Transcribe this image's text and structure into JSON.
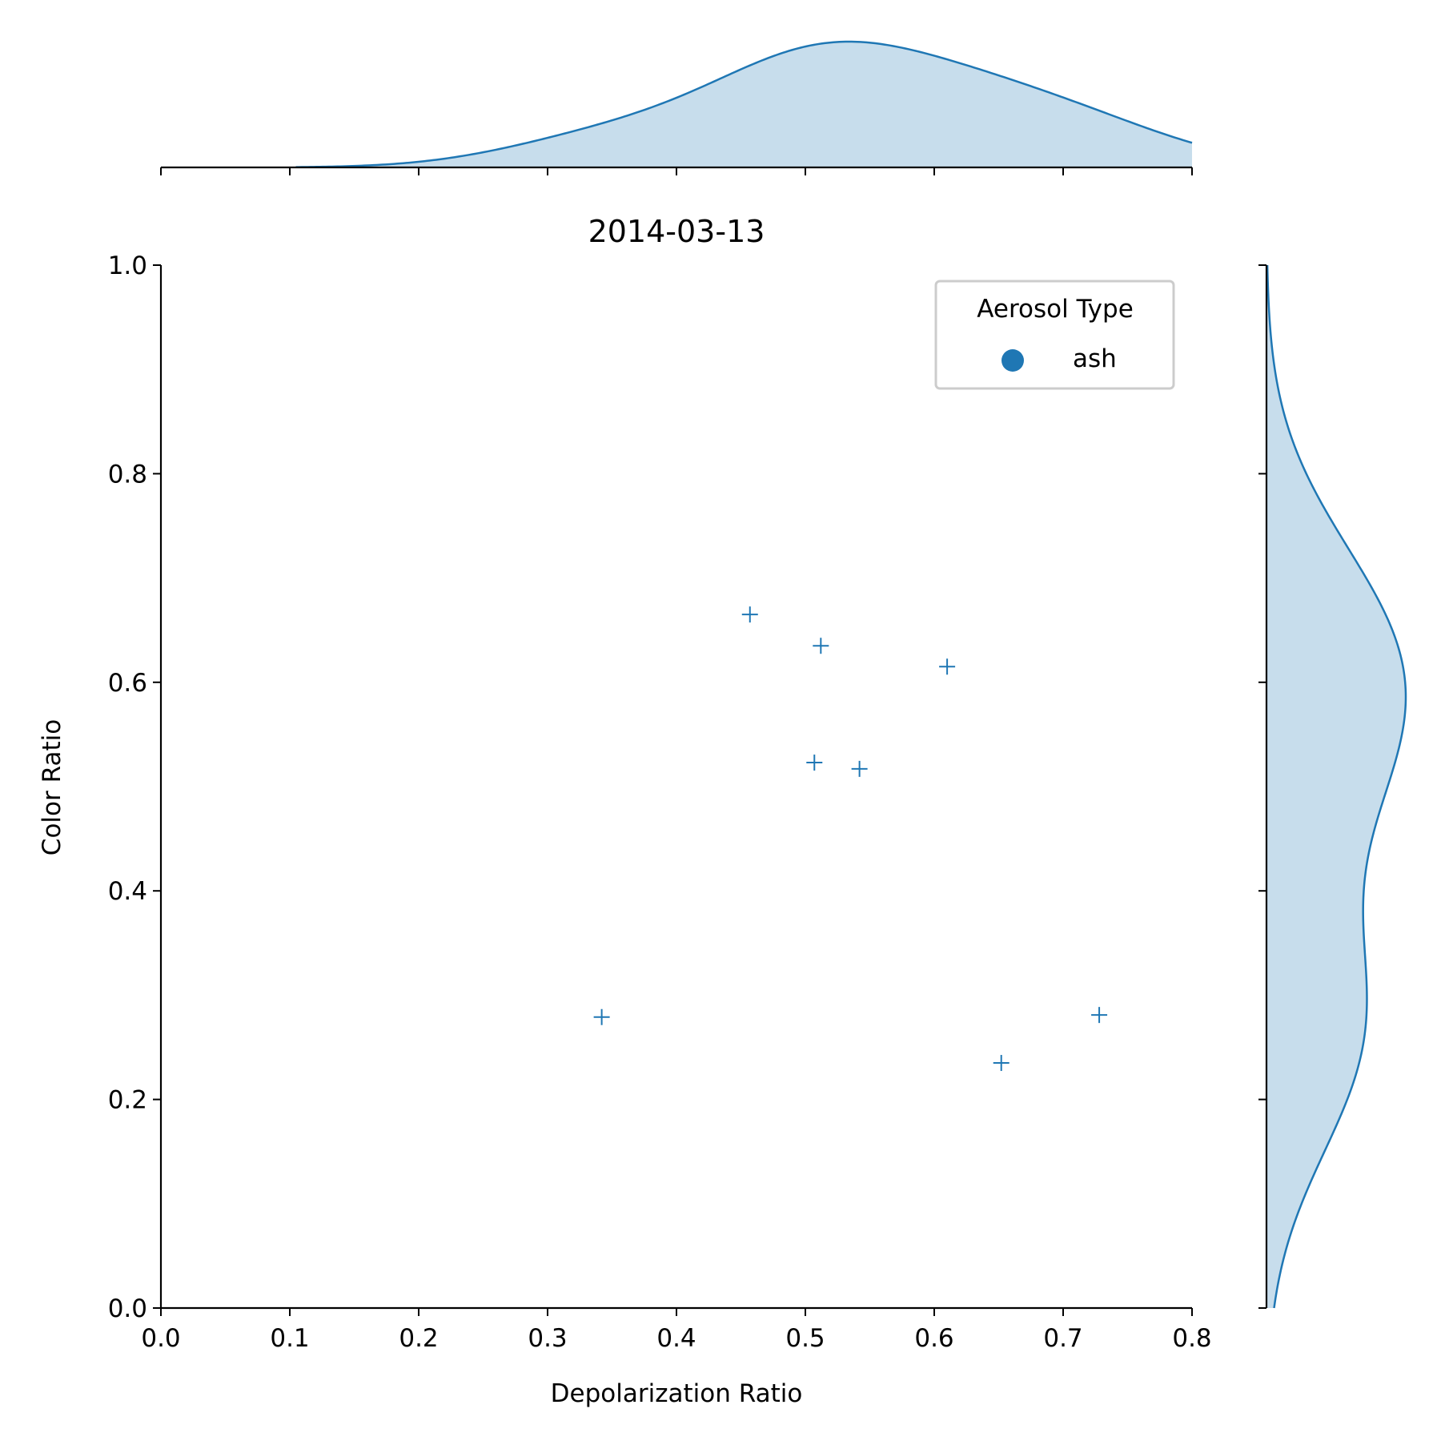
{
  "chart_data": {
    "type": "scatter",
    "title": "2014-03-13",
    "xlabel": "Depolarization Ratio",
    "ylabel": "Color Ratio",
    "xlim": [
      0.0,
      0.8
    ],
    "ylim": [
      0.0,
      1.0
    ],
    "x_ticks": [
      "0.0",
      "0.1",
      "0.2",
      "0.3",
      "0.4",
      "0.5",
      "0.6",
      "0.7",
      "0.8"
    ],
    "y_ticks": [
      "0.0",
      "0.2",
      "0.4",
      "0.6",
      "0.8",
      "1.0"
    ],
    "grid": false,
    "marker": "+",
    "legend": {
      "title": "Aerosol Type",
      "placement": "top-right",
      "entries": [
        {
          "label": "ash",
          "color": "#1f77b4"
        }
      ]
    },
    "series": [
      {
        "name": "ash",
        "color": "#1f77b4",
        "points": [
          {
            "x": 0.342,
            "y": 0.279
          },
          {
            "x": 0.457,
            "y": 0.665
          },
          {
            "x": 0.512,
            "y": 0.635
          },
          {
            "x": 0.507,
            "y": 0.523
          },
          {
            "x": 0.542,
            "y": 0.517
          },
          {
            "x": 0.61,
            "y": 0.615
          },
          {
            "x": 0.652,
            "y": 0.235
          },
          {
            "x": 0.728,
            "y": 0.281
          }
        ]
      }
    ],
    "marginals": {
      "type": "kde",
      "fill": true,
      "color": "#1f77b4"
    }
  }
}
